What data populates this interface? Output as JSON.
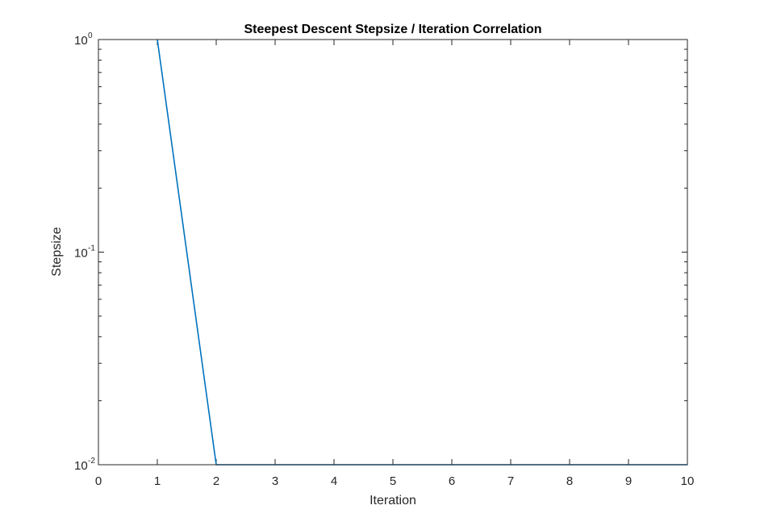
{
  "chart_data": {
    "type": "line",
    "title": "Steepest Descent Stepsize / Iteration Correlation",
    "xlabel": "Iteration",
    "ylabel": "Stepsize",
    "xlim": [
      0,
      10
    ],
    "ylim": [
      0.01,
      1
    ],
    "yscale": "log",
    "grid": false,
    "legend": "none",
    "x_ticks": [
      "0",
      "1",
      "2",
      "3",
      "4",
      "5",
      "6",
      "7",
      "8",
      "9",
      "10"
    ],
    "y_ticks": [
      {
        "value": 0.01,
        "base": "10",
        "exp": "-2"
      },
      {
        "value": 0.1,
        "base": "10",
        "exp": "-1"
      },
      {
        "value": 1,
        "base": "10",
        "exp": "0"
      }
    ],
    "series": [
      {
        "color": "#0072BD",
        "x": [
          1,
          2,
          3,
          4,
          5,
          6,
          7,
          8,
          9,
          10
        ],
        "y": [
          1,
          0.01,
          0.01,
          0.01,
          0.01,
          0.01,
          0.01,
          0.01,
          0.01,
          0.01
        ]
      }
    ],
    "colors": {
      "axes": "#262626",
      "background": "#ffffff"
    }
  }
}
